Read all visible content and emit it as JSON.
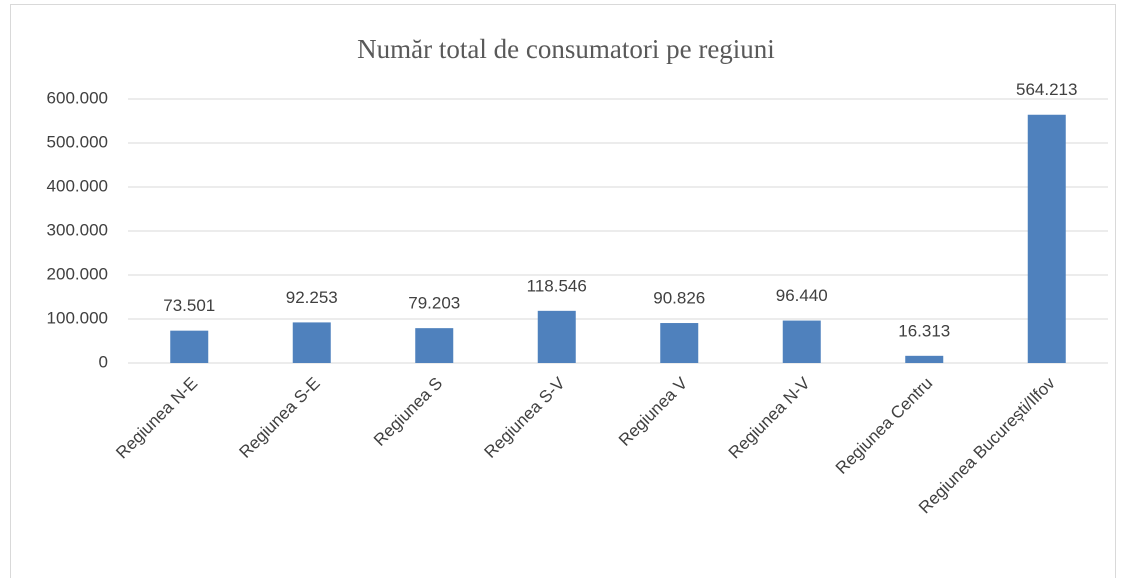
{
  "chart_data": {
    "type": "bar",
    "title": "Număr total de consumatori pe regiuni",
    "categories": [
      "Regiunea N-E",
      "Regiunea S-E",
      "Regiunea S",
      "Regiunea S-V",
      "Regiunea V",
      "Regiunea N-V",
      "Regiunea Centru",
      "Regiunea București/Ilfov"
    ],
    "values": [
      73501,
      92253,
      79203,
      118546,
      90826,
      96440,
      16313,
      564213
    ],
    "value_labels": [
      "73.501",
      "92.253",
      "79.203",
      "118.546",
      "90.826",
      "96.440",
      "16.313",
      "564.213"
    ],
    "color": "#4f81bd",
    "ylim": [
      0,
      600000
    ],
    "yticks": [
      0,
      {
        "value": 100000,
        "label": "100.000"
      },
      {
        "value": 200000,
        "label": "200.000"
      },
      {
        "value": 300000,
        "label": "300.000"
      },
      {
        "value": 400000,
        "label": "400.000"
      },
      {
        "value": 500000,
        "label": "500.000"
      },
      {
        "value": 600000,
        "label": "600.000"
      }
    ],
    "grid": true
  }
}
